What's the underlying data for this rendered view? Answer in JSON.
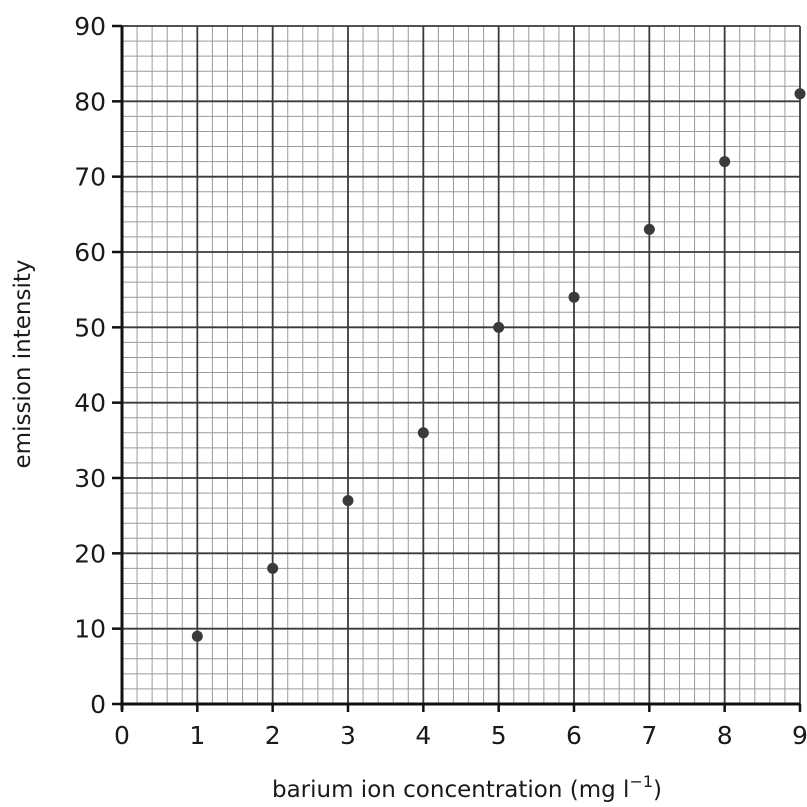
{
  "chart_data": {
    "type": "scatter",
    "xlabel": "barium ion concentration (mg l",
    "xlabel_superscript": "−1",
    "xlabel_close": ")",
    "ylabel": "emission intensity",
    "xlim": [
      0,
      9
    ],
    "ylim": [
      0,
      90
    ],
    "x_ticks": [
      "0",
      "1",
      "2",
      "3",
      "4",
      "5",
      "6",
      "7",
      "8",
      "9"
    ],
    "y_ticks": [
      "0",
      "10",
      "20",
      "30",
      "40",
      "50",
      "60",
      "70",
      "80",
      "90"
    ],
    "grid": true,
    "grid_minor_divisions": 5,
    "point_color": "#3a3a3a",
    "series": [
      {
        "x": [
          1,
          2,
          3,
          4,
          5,
          6,
          7,
          8,
          9
        ],
        "y": [
          9,
          18,
          27,
          36,
          50,
          54,
          63,
          72,
          81
        ]
      }
    ]
  }
}
